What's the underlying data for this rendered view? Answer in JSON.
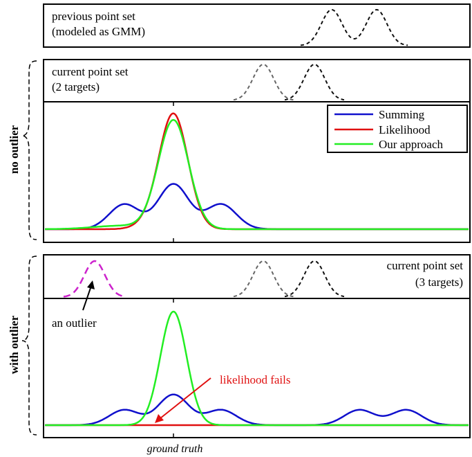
{
  "panels": {
    "previous": {
      "line1": "previous point set",
      "line2": "(modeled as GMM)"
    },
    "current_a": {
      "line1": "current point set",
      "line2": "(2 targets)"
    },
    "current_b": {
      "line1": "current point set",
      "line2": "(3 targets)"
    }
  },
  "side_labels": {
    "no_outlier": "no outlier",
    "with_outlier": "with outlier"
  },
  "annotations": {
    "outlier": "an outlier",
    "likelihood_fails": "likelihood fails"
  },
  "xaxis_label": "ground truth",
  "legend": [
    "Summing",
    "Likelihood",
    "Our approach"
  ],
  "colors": {
    "summing": "#1010cc",
    "likelihood": "#e01010",
    "our_approach": "#22ee22",
    "previous_gmm": "#111111",
    "current_gmm": "#666666",
    "outlier": "#cc22cc",
    "annotation_red": "#e01010"
  },
  "chart_data": [
    {
      "type": "line",
      "name": "no outlier response",
      "x_range": [
        0,
        1
      ],
      "series": [
        {
          "name": "Summing",
          "curve": "summing_no_outlier",
          "peak": 0.37
        },
        {
          "name": "Likelihood",
          "curve": "likelihood",
          "peak": 0.93
        },
        {
          "name": "Our approach",
          "curve": "our_approach",
          "peak": 0.89
        }
      ],
      "ground_truth_x": 0.305
    },
    {
      "type": "line",
      "name": "with outlier response",
      "x_range": [
        0,
        1
      ],
      "series": [
        {
          "name": "Summing",
          "curve": "summing_with_outlier",
          "peak": 0.26
        },
        {
          "name": "Likelihood",
          "curve": "flat",
          "peak": 0
        },
        {
          "name": "Our approach",
          "curve": "our_approach",
          "peak": 0.9
        }
      ],
      "ground_truth_x": 0.305
    }
  ]
}
